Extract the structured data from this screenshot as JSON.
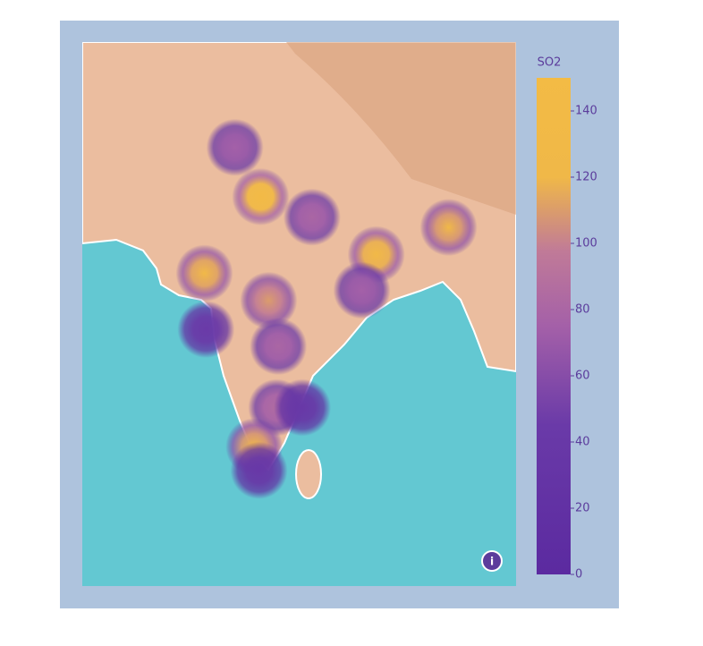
{
  "chart_data": {
    "type": "density_map",
    "colorbar_title": "SO2",
    "lon": [
      75.5,
      77.1,
      80.3,
      84.3,
      83.4,
      88.8,
      73.6,
      73.7,
      77.6,
      78.2,
      78.1,
      79.7,
      76.7,
      77.0
    ],
    "lat": [
      30.8,
      27.9,
      26.7,
      24.5,
      22.4,
      26.1,
      23.4,
      20.1,
      21.8,
      19.1,
      15.5,
      15.5,
      13.2,
      11.8
    ],
    "values": [
      75,
      140,
      80,
      130,
      75,
      120,
      125,
      45,
      110,
      80,
      85,
      40,
      120,
      40
    ],
    "lonlim": [
      66,
      93
    ],
    "latlim": [
      5,
      37
    ],
    "zlim": [
      0,
      150
    ],
    "zticks": [
      0,
      20,
      40,
      60,
      80,
      100,
      120,
      140
    ],
    "colorscale": [
      [
        0,
        "#5b2aa0"
      ],
      [
        0.3,
        "#6a3aa8"
      ],
      [
        0.5,
        "#a460a8"
      ],
      [
        0.65,
        "#c07a98"
      ],
      [
        0.8,
        "#f0b848"
      ],
      [
        1,
        "#f3bb45"
      ]
    ]
  }
}
